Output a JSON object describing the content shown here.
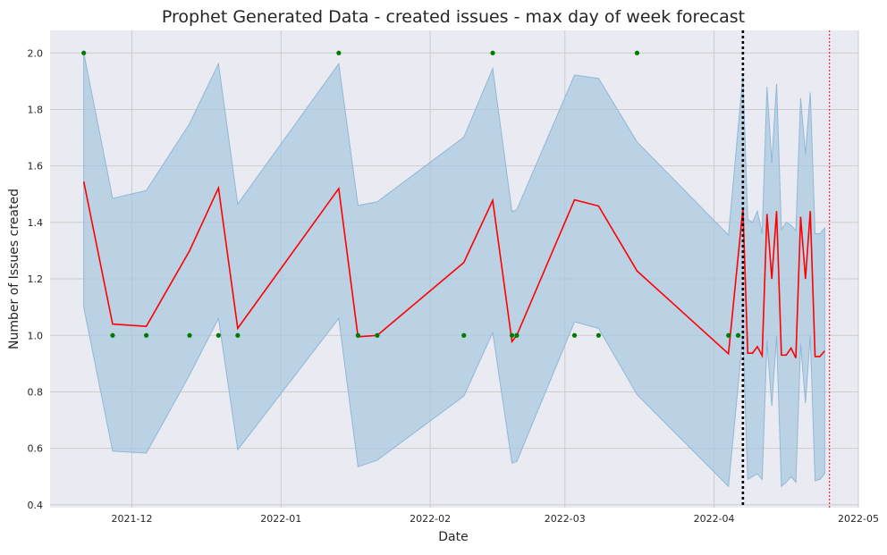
{
  "chart_data": {
    "type": "line",
    "title": "Prophet Generated Data - created issues - max day of week forecast",
    "xlabel": "Date",
    "ylabel": "Number of Issues created",
    "xlim": [
      "2021-11-14",
      "2022-05-01"
    ],
    "ylim": [
      0.39,
      2.08
    ],
    "grid": true,
    "x_ticks": [
      "2021-12-01",
      "2022-01-01",
      "2022-02-01",
      "2022-03-01",
      "2022-04-01",
      "2022-05-01"
    ],
    "x_tick_labels": [
      "2021-12",
      "2022-01",
      "2022-02",
      "2022-03",
      "2022-04",
      "2022-05"
    ],
    "y_ticks": [
      0.4,
      0.6,
      0.8,
      1.0,
      1.2,
      1.4,
      1.6,
      1.8,
      2.0
    ],
    "y_tick_labels": [
      "0.4",
      "0.6",
      "0.8",
      "1.0",
      "1.2",
      "1.4",
      "1.6",
      "1.8",
      "2.0"
    ],
    "colors": {
      "background": "#eaeaf2",
      "grid": "#cccccc",
      "forecast": "#ff0000",
      "interval": "#a6c8e0",
      "actual": "#007a00",
      "cutoff": "#000000",
      "end_marker": "#ff0000"
    },
    "cutoff_date": "2022-04-07",
    "end_date": "2022-04-25",
    "actual": [
      {
        "x": "2021-11-21",
        "y": 2.0
      },
      {
        "x": "2021-11-27",
        "y": 1.0
      },
      {
        "x": "2021-12-04",
        "y": 1.0
      },
      {
        "x": "2021-12-13",
        "y": 1.0
      },
      {
        "x": "2021-12-19",
        "y": 1.0
      },
      {
        "x": "2021-12-23",
        "y": 1.0
      },
      {
        "x": "2022-01-13",
        "y": 2.0
      },
      {
        "x": "2022-01-17",
        "y": 1.0
      },
      {
        "x": "2022-01-21",
        "y": 1.0
      },
      {
        "x": "2022-02-08",
        "y": 1.0
      },
      {
        "x": "2022-02-14",
        "y": 2.0
      },
      {
        "x": "2022-02-18",
        "y": 1.0
      },
      {
        "x": "2022-02-19",
        "y": 1.0
      },
      {
        "x": "2022-03-03",
        "y": 1.0
      },
      {
        "x": "2022-03-08",
        "y": 1.0
      },
      {
        "x": "2022-03-16",
        "y": 2.0
      },
      {
        "x": "2022-04-04",
        "y": 1.0
      },
      {
        "x": "2022-04-06",
        "y": 1.0
      }
    ],
    "forecast": [
      {
        "x": "2021-11-21",
        "y": 1.545,
        "lower": 1.1,
        "upper": 2.0
      },
      {
        "x": "2021-11-27",
        "y": 1.04,
        "lower": 0.59,
        "upper": 1.485
      },
      {
        "x": "2021-12-04",
        "y": 1.032,
        "lower": 0.583,
        "upper": 1.513
      },
      {
        "x": "2021-12-13",
        "y": 1.3,
        "lower": 0.86,
        "upper": 1.75
      },
      {
        "x": "2021-12-19",
        "y": 1.522,
        "lower": 1.06,
        "upper": 1.962
      },
      {
        "x": "2021-12-23",
        "y": 1.025,
        "lower": 0.595,
        "upper": 1.465
      },
      {
        "x": "2022-01-13",
        "y": 1.52,
        "lower": 1.06,
        "upper": 1.962
      },
      {
        "x": "2022-01-17",
        "y": 0.995,
        "lower": 0.535,
        "upper": 1.46
      },
      {
        "x": "2022-01-21",
        "y": 1.0,
        "lower": 0.558,
        "upper": 1.473
      },
      {
        "x": "2022-02-08",
        "y": 1.258,
        "lower": 0.785,
        "upper": 1.702
      },
      {
        "x": "2022-02-14",
        "y": 1.478,
        "lower": 1.01,
        "upper": 1.945
      },
      {
        "x": "2022-02-18",
        "y": 0.978,
        "lower": 0.548,
        "upper": 1.438
      },
      {
        "x": "2022-02-19",
        "y": 1.0,
        "lower": 0.553,
        "upper": 1.445
      },
      {
        "x": "2022-03-03",
        "y": 1.48,
        "lower": 1.048,
        "upper": 1.922
      },
      {
        "x": "2022-03-08",
        "y": 1.458,
        "lower": 1.025,
        "upper": 1.91
      },
      {
        "x": "2022-03-16",
        "y": 1.228,
        "lower": 0.79,
        "upper": 1.685
      },
      {
        "x": "2022-04-04",
        "y": 0.935,
        "lower": 0.465,
        "upper": 1.355
      },
      {
        "x": "2022-04-07",
        "y": 1.45,
        "lower": 1.0,
        "upper": 1.92
      },
      {
        "x": "2022-04-08",
        "y": 0.937,
        "lower": 0.49,
        "upper": 1.41
      },
      {
        "x": "2022-04-09",
        "y": 0.937,
        "lower": 0.5,
        "upper": 1.4
      },
      {
        "x": "2022-04-10",
        "y": 0.96,
        "lower": 0.51,
        "upper": 1.44
      },
      {
        "x": "2022-04-11",
        "y": 0.928,
        "lower": 0.49,
        "upper": 1.36
      },
      {
        "x": "2022-04-12",
        "y": 1.43,
        "lower": 0.98,
        "upper": 1.88
      },
      {
        "x": "2022-04-13",
        "y": 1.2,
        "lower": 0.75,
        "upper": 1.61
      },
      {
        "x": "2022-04-14",
        "y": 1.44,
        "lower": 1.0,
        "upper": 1.89
      },
      {
        "x": "2022-04-15",
        "y": 0.93,
        "lower": 0.465,
        "upper": 1.375
      },
      {
        "x": "2022-04-16",
        "y": 0.93,
        "lower": 0.48,
        "upper": 1.4
      },
      {
        "x": "2022-04-17",
        "y": 0.955,
        "lower": 0.5,
        "upper": 1.39
      },
      {
        "x": "2022-04-18",
        "y": 0.92,
        "lower": 0.48,
        "upper": 1.37
      },
      {
        "x": "2022-04-19",
        "y": 1.42,
        "lower": 0.97,
        "upper": 1.84
      },
      {
        "x": "2022-04-20",
        "y": 1.2,
        "lower": 0.76,
        "upper": 1.64
      },
      {
        "x": "2022-04-21",
        "y": 1.44,
        "lower": 1.0,
        "upper": 1.86
      },
      {
        "x": "2022-04-22",
        "y": 0.925,
        "lower": 0.485,
        "upper": 1.36
      },
      {
        "x": "2022-04-23",
        "y": 0.925,
        "lower": 0.49,
        "upper": 1.36
      },
      {
        "x": "2022-04-24",
        "y": 0.945,
        "lower": 0.51,
        "upper": 1.38
      }
    ]
  }
}
